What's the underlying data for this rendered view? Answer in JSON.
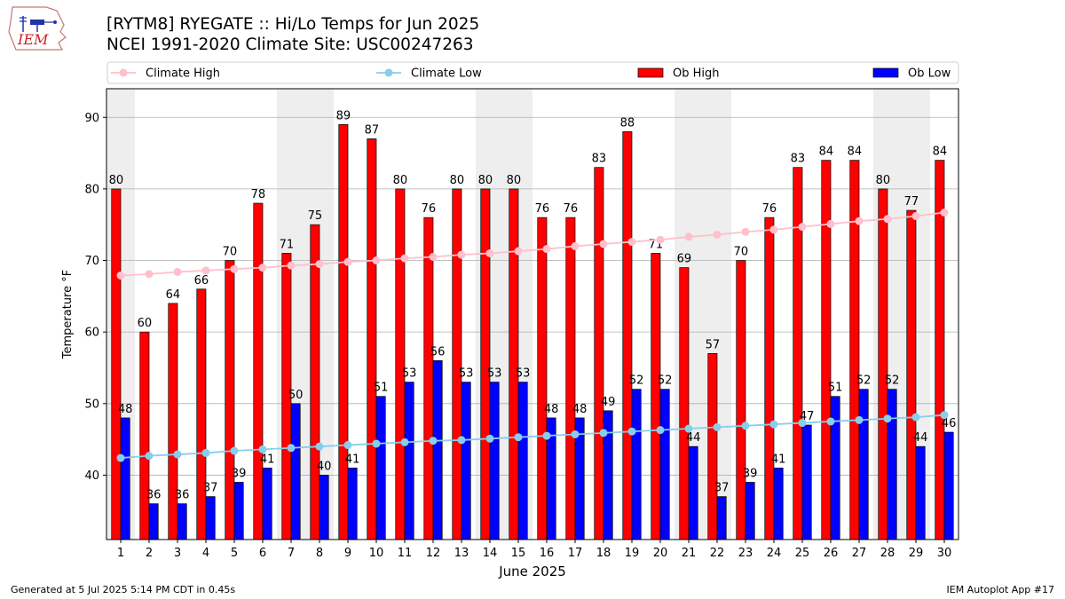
{
  "header": {
    "title_line1": "[RYTM8] RYEGATE :: Hi/Lo Temps for Jun 2025",
    "title_line2": "NCEI 1991-2020 Climate Site: USC00247263",
    "logo_text": "IEM"
  },
  "footer": {
    "left": "Generated at 5 Jul 2025 5:14 PM CDT in 0.45s",
    "right": "IEM Autoplot App #17"
  },
  "colors": {
    "ob_high": "#ff0000",
    "ob_low": "#0000ff",
    "climate_high": "#ffc0cb",
    "climate_low": "#87ceeb",
    "weekend_shade": "#eeeeee"
  },
  "chart_data": {
    "type": "bar",
    "xlabel": "June 2025",
    "ylabel": "Temperature °F",
    "ylim": [
      31,
      94
    ],
    "yticks": [
      40,
      50,
      60,
      70,
      80,
      90
    ],
    "grid": "horizontal",
    "legend_position": "top",
    "categories": [
      "1",
      "2",
      "3",
      "4",
      "5",
      "6",
      "7",
      "8",
      "9",
      "10",
      "11",
      "12",
      "13",
      "14",
      "15",
      "16",
      "17",
      "18",
      "19",
      "20",
      "21",
      "22",
      "23",
      "24",
      "25",
      "26",
      "27",
      "28",
      "29",
      "30"
    ],
    "shaded_days": [
      "1",
      "7",
      "8",
      "14",
      "15",
      "21",
      "22",
      "28",
      "29"
    ],
    "series": [
      {
        "name": "Climate High",
        "kind": "line",
        "values": [
          67.9,
          68.1,
          68.4,
          68.6,
          68.8,
          69.0,
          69.3,
          69.5,
          69.8,
          70.0,
          70.3,
          70.5,
          70.8,
          71.0,
          71.3,
          71.6,
          72.0,
          72.3,
          72.6,
          72.9,
          73.3,
          73.6,
          74.0,
          74.3,
          74.7,
          75.1,
          75.5,
          75.8,
          76.2,
          76.7
        ]
      },
      {
        "name": "Climate Low",
        "kind": "line",
        "values": [
          42.4,
          42.7,
          42.9,
          43.1,
          43.4,
          43.6,
          43.8,
          44.0,
          44.2,
          44.4,
          44.6,
          44.8,
          44.9,
          45.1,
          45.3,
          45.5,
          45.7,
          45.9,
          46.1,
          46.3,
          46.5,
          46.7,
          46.9,
          47.1,
          47.3,
          47.5,
          47.7,
          47.9,
          48.1,
          48.4
        ]
      },
      {
        "name": "Ob High",
        "kind": "bar",
        "values": [
          80,
          60,
          64,
          66,
          70,
          78,
          71,
          75,
          89,
          87,
          80,
          76,
          80,
          80,
          80,
          76,
          76,
          83,
          88,
          71,
          69,
          57,
          70,
          76,
          83,
          84,
          84,
          80,
          77,
          84
        ]
      },
      {
        "name": "Ob Low",
        "kind": "bar",
        "values": [
          48,
          36,
          36,
          37,
          39,
          41,
          50,
          40,
          41,
          51,
          53,
          56,
          53,
          53,
          53,
          48,
          48,
          49,
          52,
          52,
          44,
          37,
          39,
          41,
          47,
          51,
          52,
          52,
          44,
          46
        ]
      }
    ]
  }
}
